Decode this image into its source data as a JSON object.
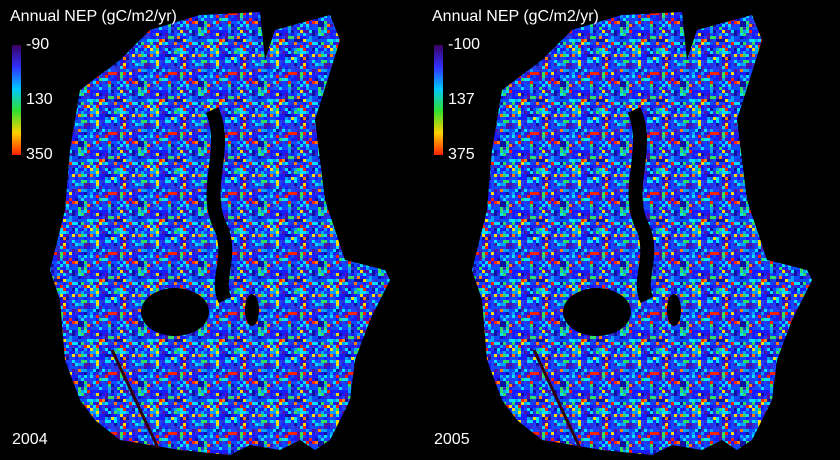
{
  "panels": [
    {
      "title": "Annual NEP (gC/m2/yr)",
      "colorbar_ticks": [
        -90,
        130,
        350
      ],
      "year": "2004"
    },
    {
      "title": "Annual NEP (gC/m2/yr)",
      "colorbar_ticks": [
        -100,
        137,
        375
      ],
      "year": "2005"
    }
  ]
}
